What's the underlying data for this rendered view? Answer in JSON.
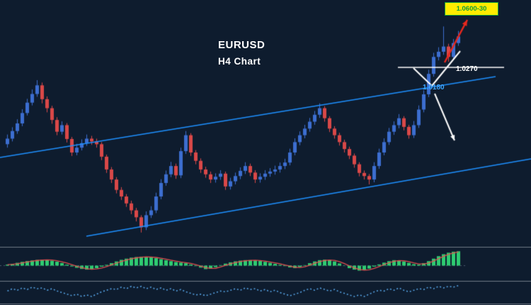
{
  "labels": {
    "symbol": "EURUSD",
    "timeframe": "H4 Chart",
    "target": "1.0600-30",
    "resistance": "1.0270",
    "support": "1.0180"
  },
  "colors": {
    "background": "#0e1c2e",
    "bull": "#3c6ed0",
    "bear": "#d94848",
    "channel": "#1e90ff",
    "white": "#ffffff",
    "red_arrow": "#e8281e",
    "hist": "#2ecc71",
    "signal": "#e05050",
    "osc": "#58a6e8",
    "separator": "#707a86",
    "midline": "#4a5a6e",
    "badge_bg": "#ffec00",
    "badge_text": "#0f9d3a",
    "support_label": "#3ea6ff"
  },
  "chart_data": {
    "type": "candlestick",
    "symbol": "EURUSD",
    "timeframe": "H4",
    "title": "EURUSD H4 Chart",
    "legend": "none",
    "grid": false,
    "ylim": [
      0.988,
      1.056
    ],
    "candles": [
      [
        1.016,
        1.0188,
        1.015,
        1.0176
      ],
      [
        1.0176,
        1.0209,
        1.0168,
        1.0198
      ],
      [
        1.0198,
        1.0232,
        1.019,
        1.022
      ],
      [
        1.022,
        1.0261,
        1.0212,
        1.025
      ],
      [
        1.025,
        1.0291,
        1.0243,
        1.028
      ],
      [
        1.028,
        1.0318,
        1.0272,
        1.0305
      ],
      [
        1.0305,
        1.0345,
        1.0297,
        1.033
      ],
      [
        1.033,
        1.0338,
        1.0278,
        1.029
      ],
      [
        1.029,
        1.0298,
        1.0252,
        1.0264
      ],
      [
        1.0264,
        1.0271,
        1.0219,
        1.023
      ],
      [
        1.023,
        1.0238,
        1.0186,
        1.0196
      ],
      [
        1.0196,
        1.0226,
        1.0188,
        1.0215
      ],
      [
        1.0215,
        1.0221,
        1.0165,
        1.0175
      ],
      [
        1.0175,
        1.0181,
        1.0126,
        1.0136
      ],
      [
        1.0136,
        1.0161,
        1.0128,
        1.015
      ],
      [
        1.015,
        1.0174,
        1.0142,
        1.0163
      ],
      [
        1.0163,
        1.0188,
        1.0155,
        1.0176
      ],
      [
        1.0176,
        1.0184,
        1.0158,
        1.0168
      ],
      [
        1.0168,
        1.0176,
        1.015,
        1.016
      ],
      [
        1.016,
        1.0166,
        1.0114,
        1.0124
      ],
      [
        1.0124,
        1.013,
        1.0077,
        1.0087
      ],
      [
        1.0087,
        1.0094,
        1.0048,
        1.0058
      ],
      [
        1.0058,
        1.0065,
        1.0018,
        1.0028
      ],
      [
        1.0028,
        1.0036,
        0.9999,
        1.0009
      ],
      [
        1.0009,
        1.0016,
        0.9979,
        0.9989
      ],
      [
        0.9989,
        0.9997,
        0.9958,
        0.9969
      ],
      [
        0.9969,
        0.9976,
        0.9937,
        0.9949
      ],
      [
        0.9949,
        0.9955,
        0.9905,
        0.992
      ],
      [
        0.992,
        0.9966,
        0.9912,
        0.9955
      ],
      [
        0.9955,
        0.9981,
        0.9947,
        0.9969
      ],
      [
        0.9969,
        1.002,
        0.9961,
        1.0009
      ],
      [
        1.0009,
        1.0059,
        1.0001,
        1.0048
      ],
      [
        1.0048,
        1.0084,
        1.004,
        1.0073
      ],
      [
        1.0073,
        1.0109,
        1.0065,
        1.0097
      ],
      [
        1.0097,
        1.0104,
        1.006,
        1.007
      ],
      [
        1.007,
        1.015,
        1.0062,
        1.014
      ],
      [
        1.014,
        1.0198,
        1.0132,
        1.0186
      ],
      [
        1.0186,
        1.0192,
        1.0126,
        1.0136
      ],
      [
        1.0136,
        1.0143,
        1.0102,
        1.0112
      ],
      [
        1.0112,
        1.0119,
        1.0077,
        1.0087
      ],
      [
        1.0087,
        1.0095,
        1.0063,
        1.0073
      ],
      [
        1.0073,
        1.0081,
        1.0048,
        1.0058
      ],
      [
        1.0058,
        1.0076,
        1.0049,
        1.0066
      ],
      [
        1.0066,
        1.0085,
        1.0057,
        1.0075
      ],
      [
        1.0075,
        1.0081,
        1.0028,
        1.0038
      ],
      [
        1.0038,
        1.0063,
        1.0029,
        1.0053
      ],
      [
        1.0053,
        1.0078,
        1.0044,
        1.0068
      ],
      [
        1.0068,
        1.0093,
        1.0059,
        1.0083
      ],
      [
        1.0083,
        1.0108,
        1.0074,
        1.0097
      ],
      [
        1.0097,
        1.0104,
        1.0068,
        1.0078
      ],
      [
        1.0078,
        1.0085,
        1.0048,
        1.0058
      ],
      [
        1.0058,
        1.0076,
        1.0049,
        1.0066
      ],
      [
        1.0066,
        1.0085,
        1.0057,
        1.0075
      ],
      [
        1.0075,
        1.0091,
        1.0066,
        1.0081
      ],
      [
        1.0081,
        1.0098,
        1.0072,
        1.0087
      ],
      [
        1.0087,
        1.0107,
        1.0078,
        1.0097
      ],
      [
        1.0097,
        1.0118,
        1.0088,
        1.0107
      ],
      [
        1.0107,
        1.0147,
        1.0099,
        1.0136
      ],
      [
        1.0136,
        1.0177,
        1.0128,
        1.0166
      ],
      [
        1.0166,
        1.0197,
        1.0157,
        1.0186
      ],
      [
        1.0186,
        1.0216,
        1.0177,
        1.0205
      ],
      [
        1.0205,
        1.0236,
        1.0196,
        1.0225
      ],
      [
        1.0225,
        1.0256,
        1.0216,
        1.0245
      ],
      [
        1.0245,
        1.0278,
        1.0236,
        1.0264
      ],
      [
        1.0264,
        1.027,
        1.0225,
        1.0235
      ],
      [
        1.0235,
        1.0241,
        1.0195,
        1.0205
      ],
      [
        1.0205,
        1.0212,
        1.0176,
        1.0186
      ],
      [
        1.0186,
        1.0193,
        1.0156,
        1.0166
      ],
      [
        1.0166,
        1.0173,
        1.0136,
        1.0146
      ],
      [
        1.0146,
        1.0153,
        1.0117,
        1.0127
      ],
      [
        1.0127,
        1.0133,
        1.0092,
        1.0102
      ],
      [
        1.0102,
        1.0108,
        1.0067,
        1.0077
      ],
      [
        1.0077,
        1.0084,
        1.0058,
        1.0068
      ],
      [
        1.0068,
        1.0074,
        1.0044,
        1.0058
      ],
      [
        1.0058,
        1.0108,
        1.005,
        1.0097
      ],
      [
        1.0097,
        1.0147,
        1.0089,
        1.0136
      ],
      [
        1.0136,
        1.0177,
        1.0128,
        1.0166
      ],
      [
        1.0166,
        1.0207,
        1.0158,
        1.0196
      ],
      [
        1.0196,
        1.0226,
        1.0187,
        1.0215
      ],
      [
        1.0215,
        1.0247,
        1.0206,
        1.0235
      ],
      [
        1.0235,
        1.0241,
        1.02,
        1.021
      ],
      [
        1.021,
        1.0216,
        1.0176,
        1.0186
      ],
      [
        1.0186,
        1.0227,
        1.0178,
        1.0215
      ],
      [
        1.0215,
        1.0272,
        1.0207,
        1.026
      ],
      [
        1.026,
        1.0316,
        1.0252,
        1.0304
      ],
      [
        1.0304,
        1.0375,
        1.0296,
        1.0363
      ],
      [
        1.0363,
        1.0424,
        1.0355,
        1.0412
      ],
      [
        1.0412,
        1.044,
        1.0402,
        1.0427
      ],
      [
        1.0427,
        1.05,
        1.0418,
        1.0442
      ],
      [
        1.0442,
        1.045,
        1.0398,
        1.0412
      ],
      [
        1.0412,
        1.0464,
        1.0404,
        1.0452
      ],
      [
        1.0452,
        1.0487,
        1.0444,
        1.0471
      ]
    ],
    "histogram": [
      0.1,
      0.18,
      0.28,
      0.38,
      0.46,
      0.52,
      0.57,
      0.6,
      0.57,
      0.5,
      0.4,
      0.26,
      0.1,
      -0.08,
      -0.22,
      -0.33,
      -0.4,
      -0.36,
      -0.25,
      -0.1,
      0.08,
      0.25,
      0.42,
      0.58,
      0.7,
      0.8,
      0.86,
      0.9,
      0.88,
      0.83,
      0.75,
      0.65,
      0.55,
      0.45,
      0.36,
      0.3,
      0.24,
      0.12,
      -0.05,
      -0.2,
      -0.35,
      -0.3,
      -0.15,
      0.05,
      0.2,
      0.33,
      0.43,
      0.5,
      0.55,
      0.55,
      0.52,
      0.46,
      0.38,
      0.28,
      0.18,
      0.08,
      -0.05,
      -0.18,
      -0.25,
      -0.15,
      0.05,
      0.25,
      0.42,
      0.55,
      0.6,
      0.55,
      0.42,
      0.22,
      -0.02,
      -0.25,
      -0.4,
      -0.5,
      -0.45,
      -0.3,
      -0.1,
      0.12,
      0.3,
      0.45,
      0.55,
      0.52,
      0.42,
      0.28,
      0.15,
      0.1,
      0.25,
      0.45,
      0.7,
      0.95,
      1.15,
      1.3,
      1.4,
      1.45
    ],
    "oscillator": [
      0.2,
      0.5,
      0.3,
      0.6,
      0.4,
      0.7,
      0.5,
      0.6,
      0.3,
      0.5,
      0.2,
      0.0,
      -0.2,
      -0.4,
      -0.2,
      -0.5,
      -0.3,
      -0.5,
      -0.2,
      0.1,
      0.3,
      0.5,
      0.4,
      0.7,
      0.5,
      0.8,
      0.6,
      0.8,
      0.5,
      0.7,
      0.4,
      0.6,
      0.3,
      0.5,
      0.2,
      0.4,
      0.1,
      -0.1,
      -0.3,
      -0.2,
      -0.4,
      -0.2,
      0.0,
      0.2,
      0.1,
      0.3,
      0.5,
      0.3,
      0.6,
      0.4,
      0.5,
      0.2,
      0.4,
      0.1,
      0.3,
      0.0,
      -0.2,
      -0.4,
      -0.2,
      0.0,
      0.3,
      0.5,
      0.3,
      0.6,
      0.4,
      0.2,
      0.4,
      0.1,
      -0.1,
      -0.3,
      -0.5,
      -0.3,
      -0.5,
      -0.2,
      0.1,
      0.3,
      0.2,
      0.5,
      0.3,
      0.6,
      0.3,
      0.1,
      0.3,
      0.5,
      0.4,
      0.7,
      0.5,
      0.8,
      0.6,
      0.8,
      0.7,
      0.9
    ],
    "drawings": {
      "channel_upper": {
        "x1": 0,
        "y1": 222,
        "x2": 700,
        "y2": 108
      },
      "channel_lower": {
        "x1": 122,
        "y1": 333,
        "x2": 750,
        "y2": 224
      },
      "resistance_line": {
        "x1": 562,
        "y1": 95,
        "x2": 712,
        "y2": 95,
        "price": "1.0270"
      },
      "breakout_retest_price": "1.0180",
      "pullback_path": [
        [
          584,
          96
        ],
        [
          610,
          121
        ],
        [
          650,
          72
        ]
      ],
      "up_arrow": {
        "x1": 628,
        "y1": 88,
        "x2": 660,
        "y2": 28
      },
      "down_arrow": {
        "x1": 614,
        "y1": 132,
        "x2": 642,
        "y2": 198
      }
    }
  }
}
